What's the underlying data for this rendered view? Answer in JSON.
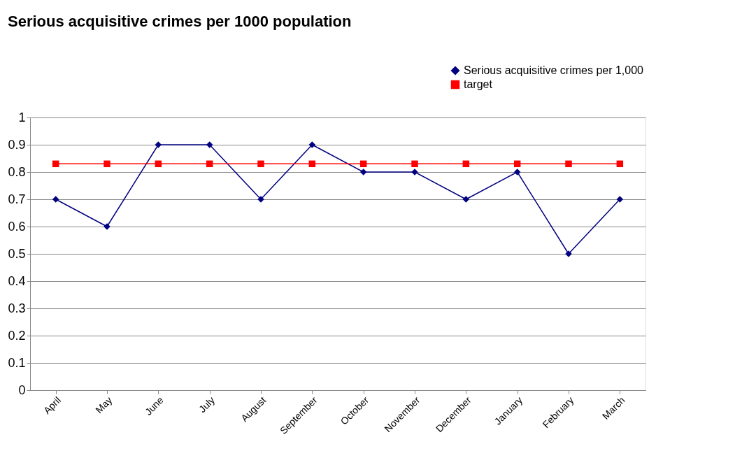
{
  "chart_data": {
    "type": "line",
    "title": "Serious acquisitive crimes per 1000 population",
    "categories": [
      "April",
      "May",
      "June",
      "July",
      "August",
      "September",
      "October",
      "November",
      "December",
      "January",
      "February",
      "March"
    ],
    "series": [
      {
        "name": "Serious acquisitive crimes per 1,000",
        "color": "#000080",
        "marker": "diamond",
        "values": [
          0.7,
          0.6,
          0.9,
          0.9,
          0.7,
          0.9,
          0.8,
          0.8,
          0.7,
          0.8,
          0.5,
          0.7
        ]
      },
      {
        "name": "target",
        "color": "#ff0000",
        "marker": "square",
        "values": [
          0.83,
          0.83,
          0.83,
          0.83,
          0.83,
          0.83,
          0.83,
          0.83,
          0.83,
          0.83,
          0.83,
          0.83
        ]
      }
    ],
    "ylim": [
      0,
      1
    ],
    "yticks": [
      0,
      0.1,
      0.2,
      0.3,
      0.4,
      0.5,
      0.6,
      0.7,
      0.8,
      0.9,
      1
    ],
    "grid": "y",
    "legend": "top right",
    "line_style": "solid"
  }
}
